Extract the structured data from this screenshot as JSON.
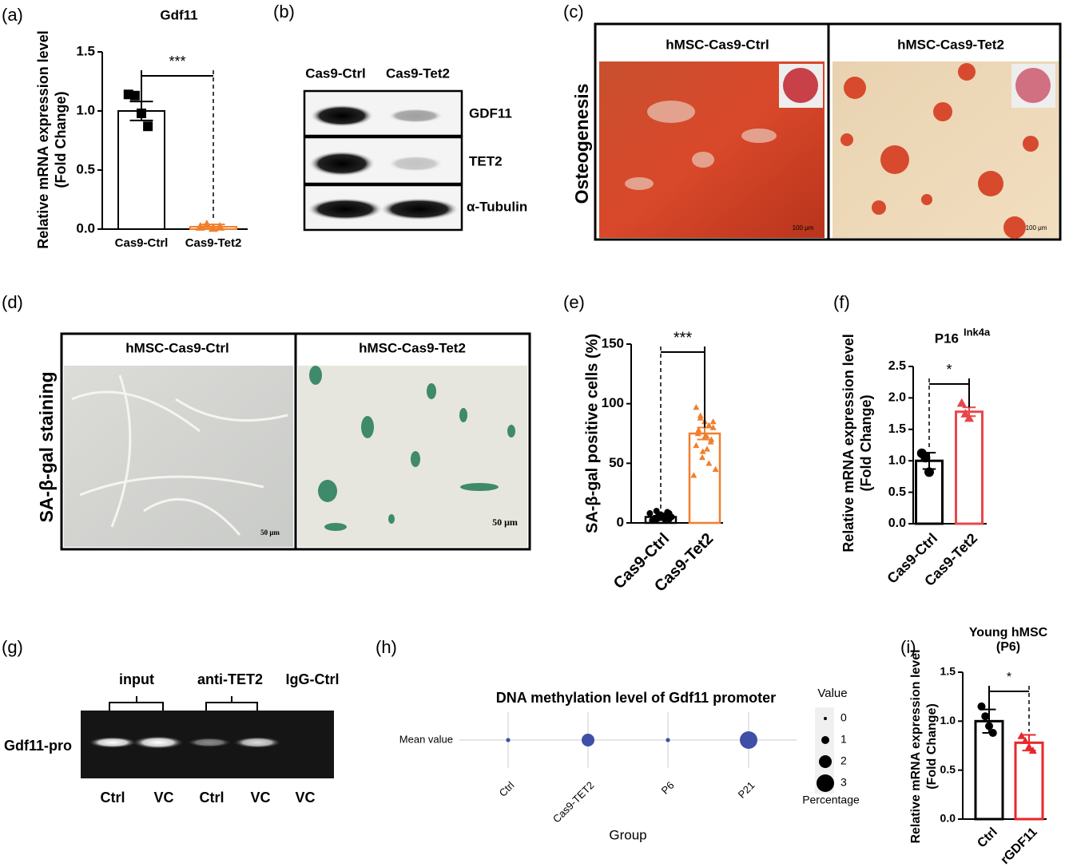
{
  "panel_labels": [
    "(a)",
    "(b)",
    "(c)",
    "(d)",
    "(e)",
    "(f)",
    "(g)",
    "(h)",
    "(i)"
  ],
  "western_blot": {
    "columns": [
      "Cas9-Ctrl",
      "Cas9-Tet2"
    ],
    "rows": [
      "GDF11",
      "TET2",
      "α-Tubulin"
    ]
  },
  "osteogenesis": {
    "label": "Osteogenesis",
    "images": [
      "hMSC-Cas9-Ctrl",
      "hMSC-Cas9-Tet2"
    ],
    "scale_bar": "100 μm"
  },
  "sa_gal": {
    "label": "SA-β-gal staining",
    "images": [
      "hMSC-Cas9-Ctrl",
      "hMSC-Cas9-Tet2"
    ],
    "scale_bar": "50 μm"
  },
  "chip": {
    "groups": [
      "input",
      "anti-TET2",
      "IgG-Ctrl"
    ],
    "row": "Gdf11-pro",
    "lanes": [
      "Ctrl",
      "VC",
      "Ctrl",
      "VC",
      "VC"
    ]
  },
  "chart_data": [
    {
      "type": "bar",
      "title": "Gdf11",
      "y_label": [
        "Relative  mRNA expression level",
        "(Fold Change)"
      ],
      "categories": [
        "Cas9-Ctrl",
        "Cas9-Tet2"
      ],
      "values": [
        1.0,
        0.02
      ],
      "errors": [
        0.08,
        0.02
      ],
      "points": [
        [
          1.14,
          1.13,
          0.98,
          0.87
        ],
        [
          0.02,
          0.04,
          0.01,
          0.02
        ]
      ],
      "colors": [
        "#000000",
        "#f07f2c"
      ],
      "significance": "***",
      "ylim": [
        0,
        1.5
      ],
      "yticks": [
        {
          "value": 0,
          "label": "0.0"
        },
        {
          "value": 0.5,
          "label": "0.5"
        },
        {
          "value": 1,
          "label": "1.0"
        },
        {
          "value": 1.5,
          "label": "1.5"
        }
      ]
    },
    {
      "type": "bar",
      "y_label": [
        "SA-β-gal positive cells (%)"
      ],
      "categories": [
        "Cas9-Ctrl",
        "Cas9-Tet2"
      ],
      "values": [
        5,
        75
      ],
      "errors": [
        1,
        5
      ],
      "points": [
        [
          2,
          3,
          5,
          6,
          8,
          4,
          3,
          7,
          9,
          5,
          2,
          4,
          6,
          3,
          5,
          8,
          10,
          4,
          6,
          3
        ],
        [
          97,
          88,
          85,
          82,
          80,
          78,
          75,
          72,
          70,
          68,
          65,
          60,
          55,
          50,
          45,
          40,
          90,
          62,
          73,
          85
        ]
      ],
      "colors": [
        "#000000",
        "#f07f2c"
      ],
      "significance": "***",
      "ylim": [
        0,
        150
      ],
      "yticks": [
        0,
        50,
        100,
        150
      ]
    },
    {
      "type": "bar",
      "title": "P16",
      "title_superscript": "Ink4a",
      "y_label": [
        "Relative  mRNA expression level",
        "(Fold Change)"
      ],
      "categories": [
        "Cas9-Ctrl",
        "Cas9-Tet2"
      ],
      "values": [
        1.0,
        1.78
      ],
      "errors": [
        0.13,
        0.07
      ],
      "points": [
        [
          1.12,
          1.05,
          0.82
        ],
        [
          1.92,
          1.75,
          1.68
        ]
      ],
      "colors": [
        "#000000",
        "#e8474a"
      ],
      "significance": "*",
      "ylim": [
        0,
        2.5
      ],
      "yticks": [
        {
          "value": 0,
          "label": "0.0"
        },
        {
          "value": 0.5,
          "label": "0.5"
        },
        {
          "value": 1,
          "label": "1.0"
        },
        {
          "value": 1.5,
          "label": "1.5"
        },
        {
          "value": 2,
          "label": "2.0"
        },
        {
          "value": 2.5,
          "label": "2.5"
        }
      ]
    },
    {
      "type": "bar",
      "title": [
        "Young hMSC",
        "(P6)"
      ],
      "y_label": [
        "Relative mRNA expression level",
        "(Fold Change)"
      ],
      "categories": [
        "Ctrl",
        "rGDF11"
      ],
      "values": [
        1.0,
        0.78
      ],
      "errors": [
        0.12,
        0.08
      ],
      "points": [
        [
          1.15,
          1.05,
          0.95,
          0.88
        ],
        [
          0.85,
          0.8,
          0.74,
          0.7
        ]
      ],
      "colors": [
        "#000000",
        "#e8262a"
      ],
      "significance": "*",
      "ylim": [
        0,
        1.5
      ],
      "yticks": [
        {
          "value": 0,
          "label": "0.0"
        },
        {
          "value": 0.5,
          "label": "0.5"
        },
        {
          "value": 1,
          "label": "1.0"
        },
        {
          "value": 1.5,
          "label": "1.5"
        }
      ]
    },
    {
      "type": "dot",
      "title": "DNA methylation level of Gdf11 promoter",
      "y_category": "Mean value",
      "categories": [
        "Ctrl",
        "Cas9-TET2",
        "P6",
        "P21"
      ],
      "values": [
        0.2,
        2,
        0.2,
        3
      ],
      "color": "#3f4fa8",
      "x_label": "Group",
      "grid": true,
      "legend": {
        "title": "Value",
        "sizes": [
          0,
          1,
          2,
          3
        ],
        "caption": "Percentage"
      }
    }
  ]
}
